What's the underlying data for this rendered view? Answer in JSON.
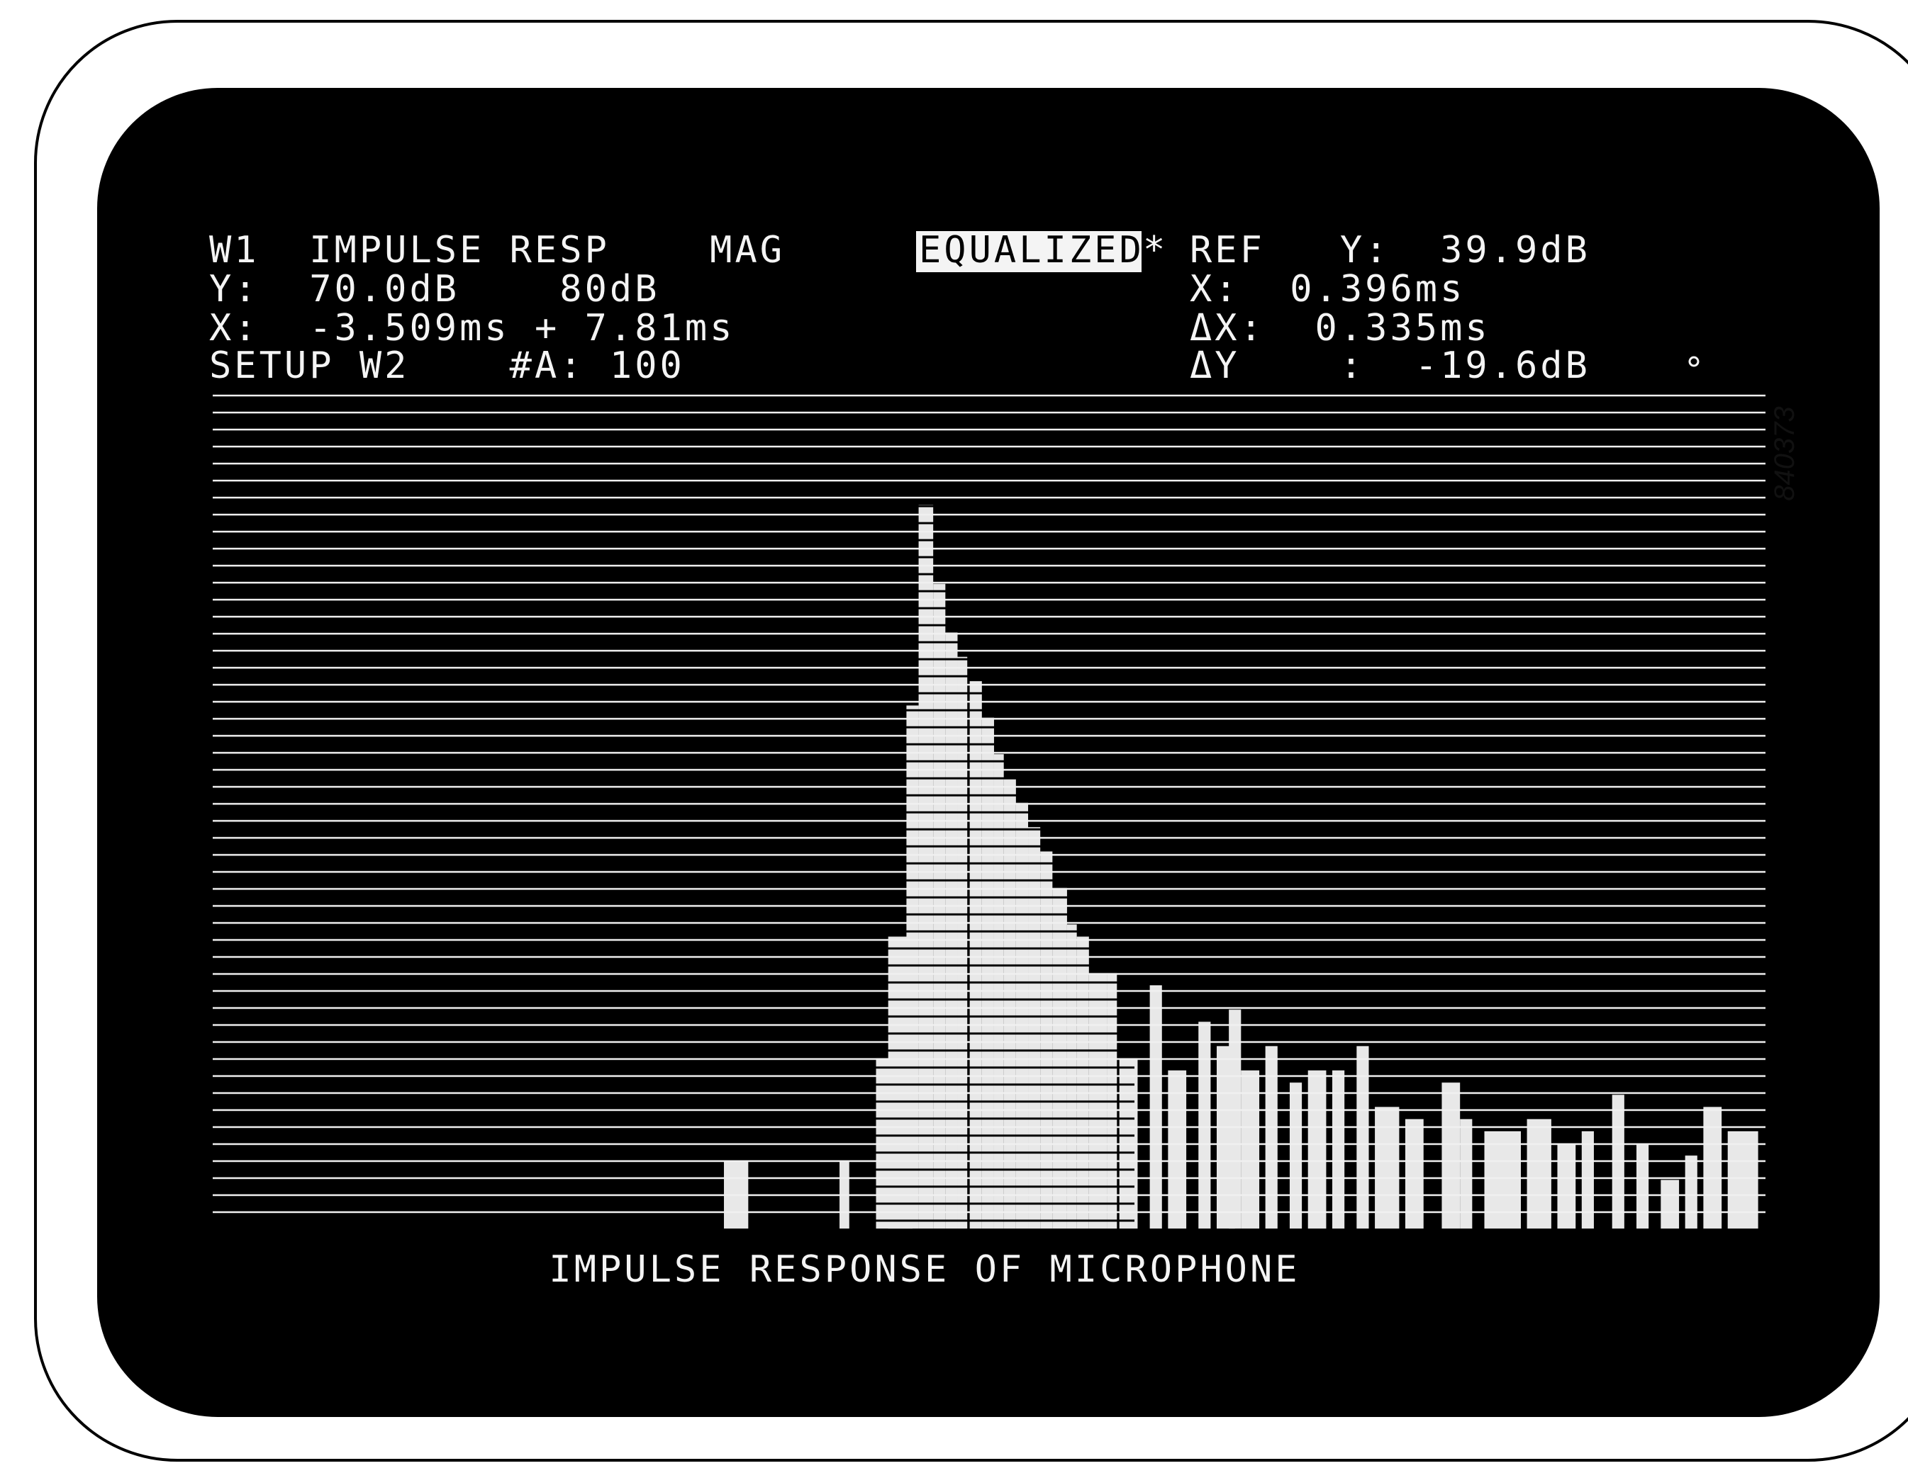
{
  "header": {
    "left": [
      "W1  IMPULSE RESP    MAG",
      "Y:  70.0dB    80dB",
      "X:  -3.509ms + 7.81ms",
      "SETUP W2    #A: 100"
    ],
    "mode": "EQUALIZED",
    "mode_mark": "*",
    "right": [
      "REF   Y:  39.9dB",
      "X:  0.396ms",
      "ΔX:  0.335ms",
      "ΔY    :  -19.6dB"
    ]
  },
  "caption": "IMPULSE RESPONSE OF MICROPHONE",
  "figure_id": "840373"
}
